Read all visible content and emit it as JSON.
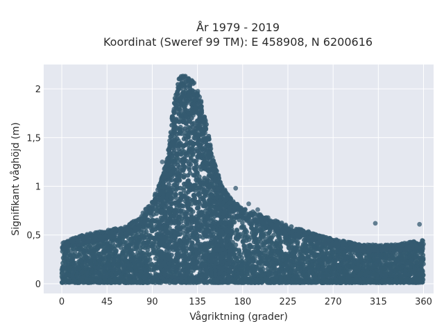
{
  "chart_data": {
    "type": "scatter",
    "title_line1": "År 1979 - 2019",
    "title_line2": "Koordinat (Sweref 99 TM): E 458908, N 6200616",
    "xlabel": "Vågriktning (grader)",
    "ylabel": "Signifikant våghöjd (m)",
    "xlim": [
      -18,
      370
    ],
    "ylim": [
      -0.1,
      2.25
    ],
    "x_ticks": [
      0,
      45,
      90,
      135,
      180,
      225,
      270,
      315,
      360
    ],
    "x_tick_labels": [
      "0",
      "45",
      "90",
      "135",
      "180",
      "225",
      "270",
      "315",
      "360"
    ],
    "y_ticks": [
      0,
      0.5,
      1,
      1.5,
      2
    ],
    "y_tick_labels": [
      "0",
      "0,5",
      "1",
      "1,5",
      "2"
    ],
    "grid": true,
    "plot_background": "#e5e8f0",
    "marker_color": "#345a70",
    "upper_envelope": {
      "x": [
        0,
        10,
        20,
        30,
        45,
        60,
        75,
        90,
        100,
        105,
        110,
        115,
        120,
        125,
        130,
        135,
        140,
        145,
        150,
        155,
        160,
        170,
        180,
        200,
        225,
        250,
        270,
        300,
        330,
        360
      ],
      "y": [
        0.42,
        0.46,
        0.5,
        0.52,
        0.55,
        0.58,
        0.66,
        0.85,
        1.1,
        1.3,
        1.75,
        2.08,
        2.15,
        2.12,
        2.1,
        2.0,
        1.85,
        1.6,
        1.3,
        1.15,
        1.0,
        0.85,
        0.78,
        0.7,
        0.6,
        0.52,
        0.46,
        0.4,
        0.4,
        0.45
      ]
    },
    "outliers": [
      {
        "x": 356,
        "y": 0.61
      },
      {
        "x": 195,
        "y": 0.76
      },
      {
        "x": 173,
        "y": 0.98
      },
      {
        "x": 312,
        "y": 0.62
      },
      {
        "x": 100,
        "y": 1.25
      },
      {
        "x": 186,
        "y": 0.82
      }
    ]
  }
}
